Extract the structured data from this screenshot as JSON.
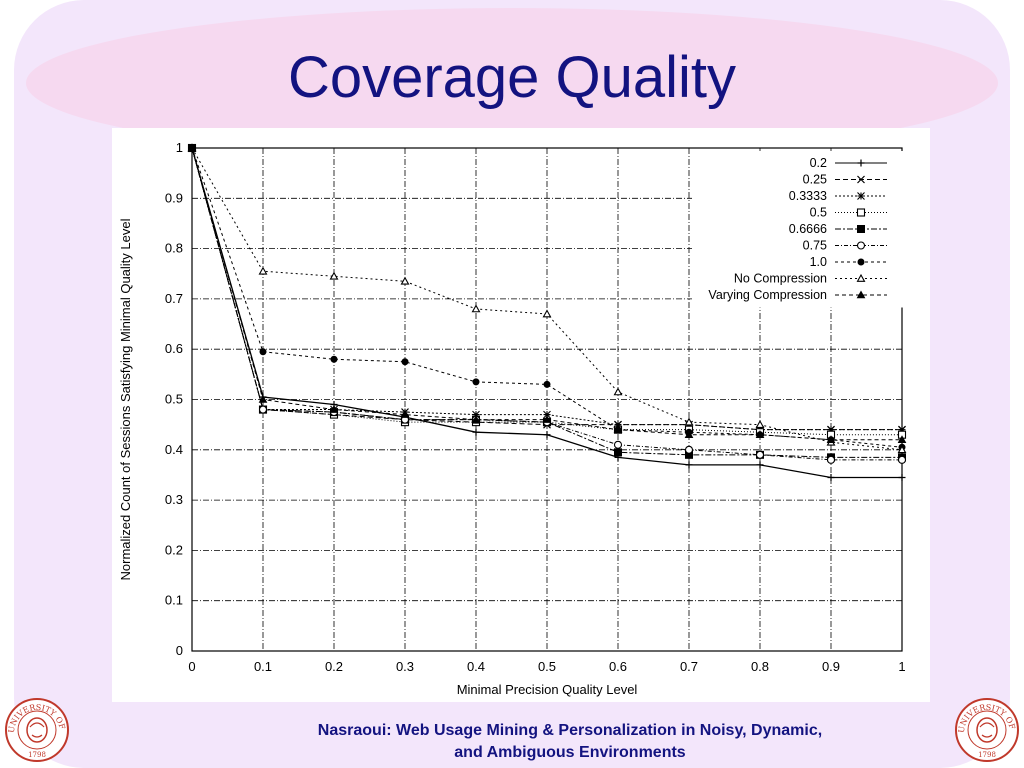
{
  "slide": {
    "title": "Coverage Quality",
    "footer_line1": "Nasraoui: Web Usage Mining & Personalization in Noisy, Dynamic,",
    "footer_line2": "and Ambiguous Environments",
    "seal_text_left": "UNIVERSITY OF LOUISVILLE",
    "seal_year": "1798",
    "title_color": "#131380"
  },
  "chart_data": {
    "type": "line",
    "title": "",
    "xlabel": "Minimal Precision Quality Level",
    "ylabel": "Normalized Count of Sessions Satisfying Minimal Quality Level",
    "x": [
      0,
      0.1,
      0.2,
      0.3,
      0.4,
      0.5,
      0.6,
      0.7,
      0.8,
      0.9,
      1
    ],
    "x_tick_labels": [
      "0",
      "0.1",
      "0.2",
      "0.3",
      "0.4",
      "0.5",
      "0.6",
      "0.7",
      "0.8",
      "0.9",
      "1"
    ],
    "y_tick_labels": [
      "0",
      "0.1",
      "0.2",
      "0.3",
      "0.4",
      "0.5",
      "0.6",
      "0.7",
      "0.8",
      "0.9",
      "1"
    ],
    "xlim": [
      0,
      1
    ],
    "ylim": [
      0,
      1
    ],
    "grid": true,
    "legend_position": "top-right",
    "series": [
      {
        "name": "0.2",
        "marker": "plus",
        "dash": "",
        "values": [
          1,
          0.505,
          0.49,
          0.465,
          0.435,
          0.43,
          0.385,
          0.37,
          0.37,
          0.345,
          0.345
        ]
      },
      {
        "name": "0.25",
        "marker": "cross",
        "dash": "5,3",
        "values": [
          1,
          0.48,
          0.47,
          0.46,
          0.455,
          0.45,
          0.45,
          0.45,
          0.44,
          0.44,
          0.44
        ]
      },
      {
        "name": "0.3333",
        "marker": "asterisk",
        "dash": "2,2",
        "values": [
          1,
          0.48,
          0.48,
          0.475,
          0.47,
          0.47,
          0.45,
          0.45,
          0.44,
          0.44,
          0.44
        ]
      },
      {
        "name": "0.5",
        "marker": "square-open",
        "dash": "1,2",
        "values": [
          1,
          0.48,
          0.47,
          0.455,
          0.455,
          0.455,
          0.44,
          0.44,
          0.435,
          0.43,
          0.43
        ]
      },
      {
        "name": "0.6666",
        "marker": "square-filled",
        "dash": "6,2,2,2",
        "values": [
          1,
          0.48,
          0.475,
          0.46,
          0.46,
          0.455,
          0.395,
          0.39,
          0.39,
          0.385,
          0.385
        ]
      },
      {
        "name": "0.75",
        "marker": "circle-open",
        "dash": "4,2,1,2",
        "values": [
          1,
          0.48,
          0.475,
          0.46,
          0.46,
          0.455,
          0.41,
          0.4,
          0.39,
          0.38,
          0.38
        ]
      },
      {
        "name": "1.0",
        "marker": "circle-filled",
        "dash": "3,3",
        "values": [
          1,
          0.595,
          0.58,
          0.575,
          0.535,
          0.53,
          0.44,
          0.435,
          0.43,
          0.42,
          0.405
        ]
      },
      {
        "name": "No Compression",
        "marker": "triangle-open",
        "dash": "2,3",
        "values": [
          1,
          0.755,
          0.745,
          0.735,
          0.68,
          0.67,
          0.515,
          0.455,
          0.45,
          0.415,
          0.4
        ]
      },
      {
        "name": "Varying Compression",
        "marker": "triangle-filled",
        "dash": "4,3",
        "values": [
          1,
          0.5,
          0.48,
          0.47,
          0.46,
          0.46,
          0.44,
          0.43,
          0.43,
          0.42,
          0.42
        ]
      }
    ]
  }
}
